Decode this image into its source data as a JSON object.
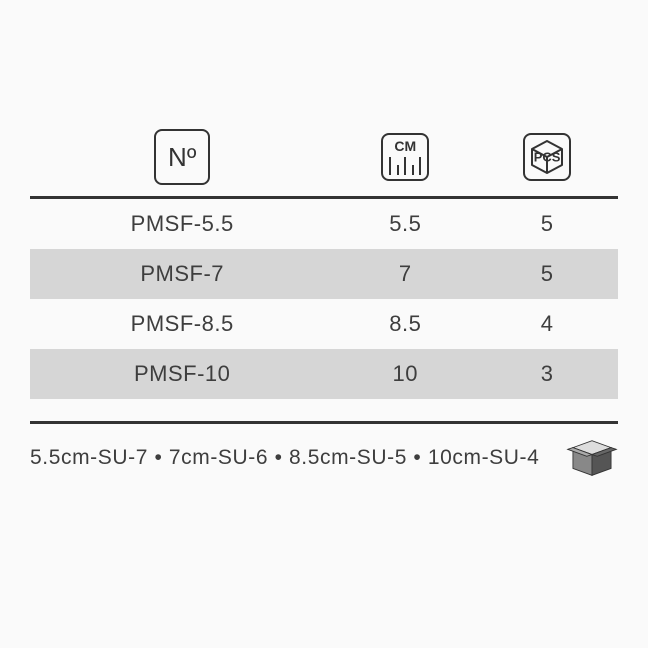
{
  "type": "table",
  "background_color": "#fafafa",
  "row_alt_color": "#d6d6d6",
  "border_color": "#333333",
  "text_color": "#3e3e3e",
  "header": {
    "number_symbol": "Nº",
    "cm_label": "CM",
    "pcs_label": "PCS"
  },
  "columns": [
    "no",
    "cm",
    "pcs"
  ],
  "rows": [
    {
      "no": "PMSF-5.5",
      "cm": "5.5",
      "pcs": "5",
      "alt": false
    },
    {
      "no": "PMSF-7",
      "cm": "7",
      "pcs": "5",
      "alt": true
    },
    {
      "no": "PMSF-8.5",
      "cm": "8.5",
      "pcs": "4",
      "alt": false
    },
    {
      "no": "PMSF-10",
      "cm": "10",
      "pcs": "3",
      "alt": true
    }
  ],
  "footer": {
    "text": "5.5cm-SU-7 • 7cm-SU-6 • 8.5cm-SU-5 • 10cm-SU-4"
  }
}
